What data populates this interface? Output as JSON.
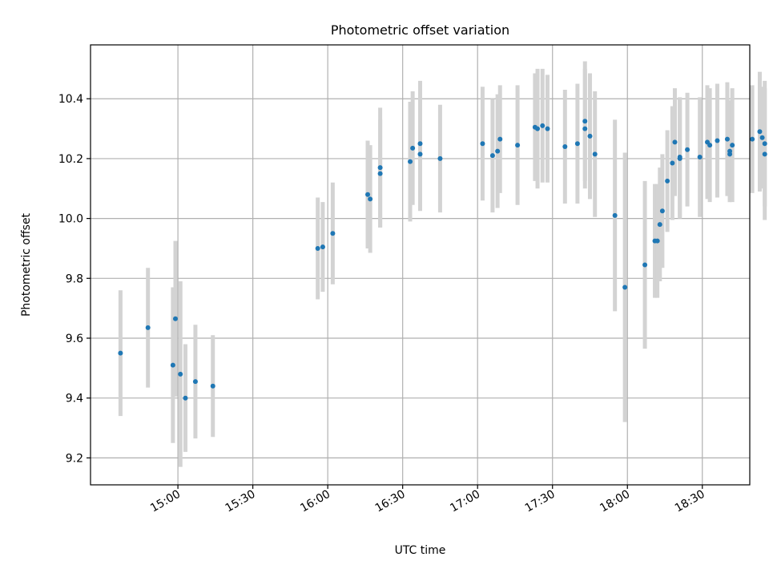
{
  "chart_data": {
    "type": "scatter",
    "title": "Photometric offset variation",
    "xlabel": "UTC time",
    "ylabel": "Photometric offset",
    "x_range": [
      "14:25",
      "18:49"
    ],
    "ylim": [
      9.11,
      10.58
    ],
    "x_ticks": [
      "15:00",
      "15:30",
      "16:00",
      "16:30",
      "17:00",
      "17:30",
      "18:00",
      "18:30"
    ],
    "y_ticks": [
      9.2,
      9.4,
      9.6,
      9.8,
      10.0,
      10.2,
      10.4
    ],
    "grid": true,
    "point_color": "#1f77b4",
    "errorbar_color": "#d3d3d3",
    "points": [
      {
        "x": "14:37",
        "y": 9.55,
        "err": 0.21
      },
      {
        "x": "14:48",
        "y": 9.635,
        "err": 0.2
      },
      {
        "x": "14:58",
        "y": 9.51,
        "err": 0.26
      },
      {
        "x": "14:59",
        "y": 9.665,
        "err": 0.26
      },
      {
        "x": "15:01",
        "y": 9.48,
        "err": 0.31
      },
      {
        "x": "15:03",
        "y": 9.4,
        "err": 0.18
      },
      {
        "x": "15:07",
        "y": 9.455,
        "err": 0.19
      },
      {
        "x": "15:14",
        "y": 9.44,
        "err": 0.17
      },
      {
        "x": "15:56",
        "y": 9.9,
        "err": 0.17
      },
      {
        "x": "15:58",
        "y": 9.905,
        "err": 0.15
      },
      {
        "x": "16:02",
        "y": 9.95,
        "err": 0.17
      },
      {
        "x": "16:16",
        "y": 10.08,
        "err": 0.18
      },
      {
        "x": "16:17",
        "y": 10.065,
        "err": 0.18
      },
      {
        "x": "16:21",
        "y": 10.17,
        "err": 0.2
      },
      {
        "x": "16:21",
        "y": 10.15,
        "err": 0.18
      },
      {
        "x": "16:33",
        "y": 10.19,
        "err": 0.2
      },
      {
        "x": "16:34",
        "y": 10.235,
        "err": 0.19
      },
      {
        "x": "16:37",
        "y": 10.25,
        "err": 0.21
      },
      {
        "x": "16:37",
        "y": 10.215,
        "err": 0.19
      },
      {
        "x": "16:45",
        "y": 10.2,
        "err": 0.18
      },
      {
        "x": "17:02",
        "y": 10.25,
        "err": 0.19
      },
      {
        "x": "17:06",
        "y": 10.21,
        "err": 0.19
      },
      {
        "x": "17:08",
        "y": 10.225,
        "err": 0.19
      },
      {
        "x": "17:09",
        "y": 10.265,
        "err": 0.18
      },
      {
        "x": "17:16",
        "y": 10.245,
        "err": 0.2
      },
      {
        "x": "17:23",
        "y": 10.305,
        "err": 0.18
      },
      {
        "x": "17:24",
        "y": 10.3,
        "err": 0.2
      },
      {
        "x": "17:26",
        "y": 10.31,
        "err": 0.19
      },
      {
        "x": "17:28",
        "y": 10.3,
        "err": 0.18
      },
      {
        "x": "17:35",
        "y": 10.24,
        "err": 0.19
      },
      {
        "x": "17:40",
        "y": 10.25,
        "err": 0.2
      },
      {
        "x": "17:43",
        "y": 10.325,
        "err": 0.2
      },
      {
        "x": "17:43",
        "y": 10.3,
        "err": 0.2
      },
      {
        "x": "17:45",
        "y": 10.275,
        "err": 0.21
      },
      {
        "x": "17:47",
        "y": 10.215,
        "err": 0.21
      },
      {
        "x": "17:55",
        "y": 10.01,
        "err": 0.32
      },
      {
        "x": "17:59",
        "y": 9.77,
        "err": 0.45
      },
      {
        "x": "18:07",
        "y": 9.845,
        "err": 0.28
      },
      {
        "x": "18:11",
        "y": 9.925,
        "err": 0.19
      },
      {
        "x": "18:12",
        "y": 9.925,
        "err": 0.19
      },
      {
        "x": "18:13",
        "y": 9.98,
        "err": 0.19
      },
      {
        "x": "18:14",
        "y": 10.025,
        "err": 0.19
      },
      {
        "x": "18:16",
        "y": 10.125,
        "err": 0.17
      },
      {
        "x": "18:18",
        "y": 10.185,
        "err": 0.19
      },
      {
        "x": "18:19",
        "y": 10.255,
        "err": 0.18
      },
      {
        "x": "18:21",
        "y": 10.205,
        "err": 0.2
      },
      {
        "x": "18:21",
        "y": 10.2,
        "err": 0.2
      },
      {
        "x": "18:24",
        "y": 10.23,
        "err": 0.19
      },
      {
        "x": "18:29",
        "y": 10.205,
        "err": 0.2
      },
      {
        "x": "18:32",
        "y": 10.255,
        "err": 0.19
      },
      {
        "x": "18:33",
        "y": 10.245,
        "err": 0.19
      },
      {
        "x": "18:36",
        "y": 10.26,
        "err": 0.19
      },
      {
        "x": "18:40",
        "y": 10.265,
        "err": 0.19
      },
      {
        "x": "18:41",
        "y": 10.215,
        "err": 0.16
      },
      {
        "x": "18:41",
        "y": 10.225,
        "err": 0.17
      },
      {
        "x": "18:42",
        "y": 10.245,
        "err": 0.19
      },
      {
        "x": "18:50",
        "y": 10.265,
        "err": 0.18
      },
      {
        "x": "18:53",
        "y": 10.29,
        "err": 0.2
      },
      {
        "x": "18:54",
        "y": 10.27,
        "err": 0.17
      },
      {
        "x": "18:55",
        "y": 10.215,
        "err": 0.22
      },
      {
        "x": "18:55",
        "y": 10.25,
        "err": 0.21
      }
    ]
  }
}
